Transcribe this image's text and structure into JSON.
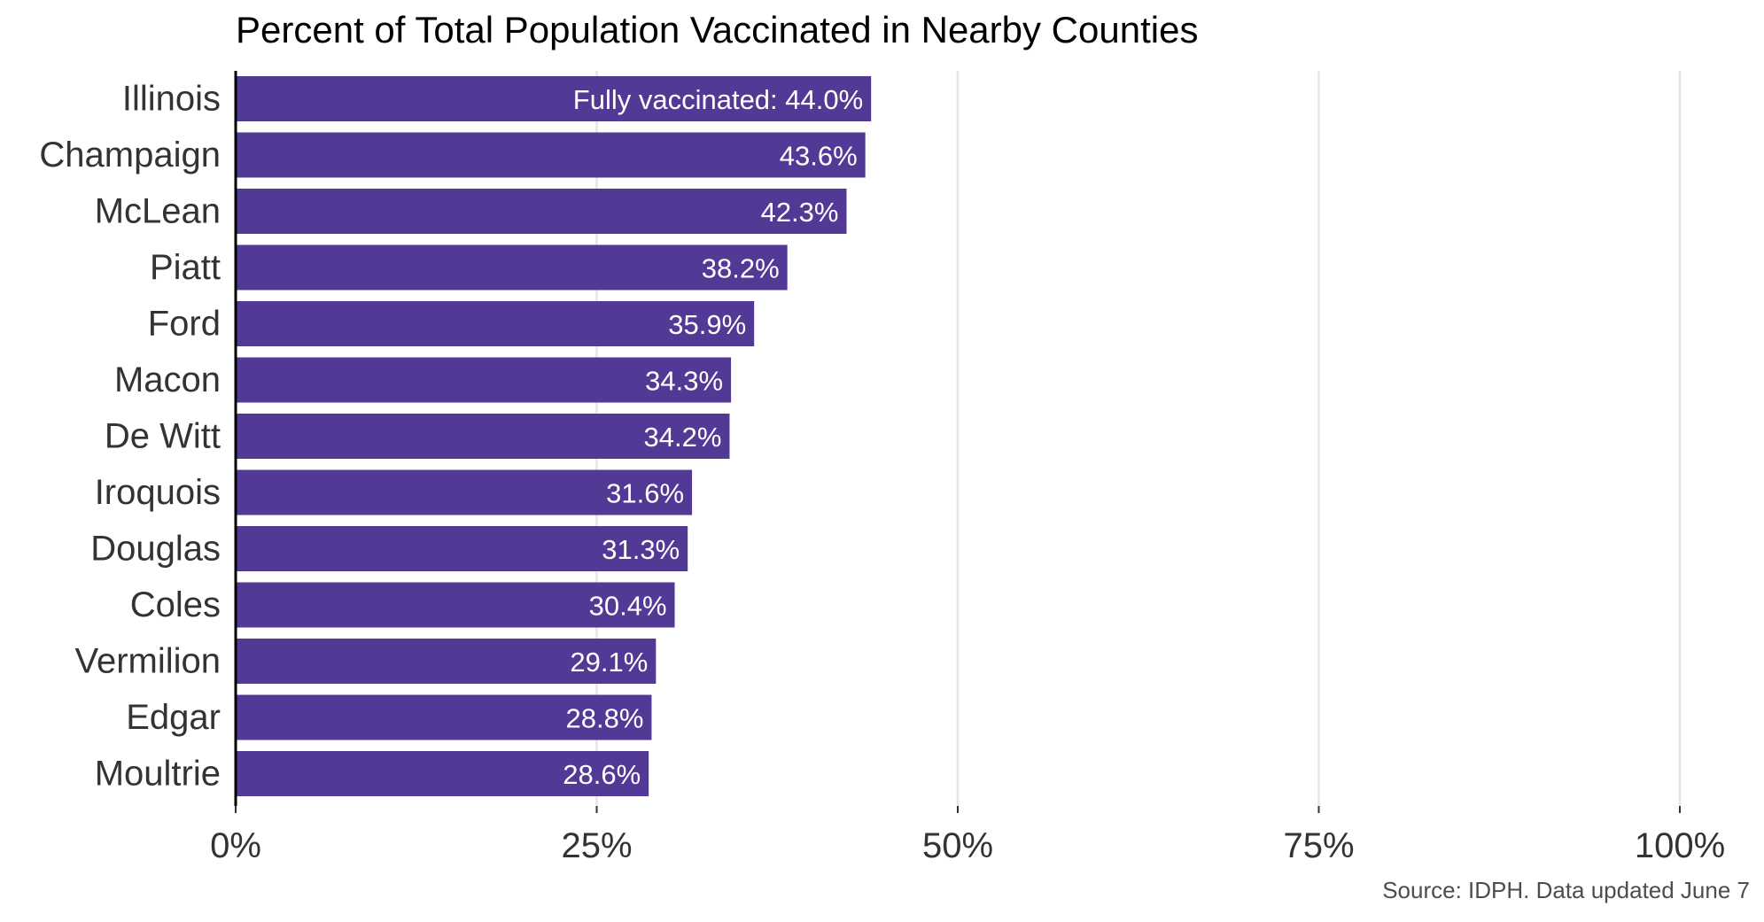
{
  "chart_data": {
    "type": "bar",
    "orientation": "horizontal",
    "title": "Percent of Total Population Vaccinated in Nearby Counties",
    "caption": "Source: IDPH. Data updated June 7",
    "categories": [
      "Illinois",
      "Champaign",
      "McLean",
      "Piatt",
      "Ford",
      "Macon",
      "De Witt",
      "Iroquois",
      "Douglas",
      "Coles",
      "Vermilion",
      "Edgar",
      "Moultrie"
    ],
    "values": [
      44.0,
      43.6,
      42.3,
      38.2,
      35.9,
      34.3,
      34.2,
      31.6,
      31.3,
      30.4,
      29.1,
      28.8,
      28.6
    ],
    "data_labels": [
      "Fully vaccinated: 44.0%",
      "43.6%",
      "42.3%",
      "38.2%",
      "35.9%",
      "34.3%",
      "34.2%",
      "31.6%",
      "31.3%",
      "30.4%",
      "29.1%",
      "28.8%",
      "28.6%"
    ],
    "xlim": [
      0,
      100
    ],
    "x_ticks": [
      0,
      25,
      50,
      75,
      100
    ],
    "x_tick_labels": [
      "0%",
      "25%",
      "50%",
      "75%",
      "100%"
    ],
    "xlabel": "",
    "ylabel": "",
    "grid": "vertical major lines",
    "legend": "none",
    "colors": {
      "bar": "#523996",
      "label_text": "#ffffff",
      "grid": "#e5e5e5",
      "axis_line": "#000000",
      "tick_text": "#333333",
      "title_text": "#000000",
      "caption_text": "#4d4d4d"
    }
  }
}
